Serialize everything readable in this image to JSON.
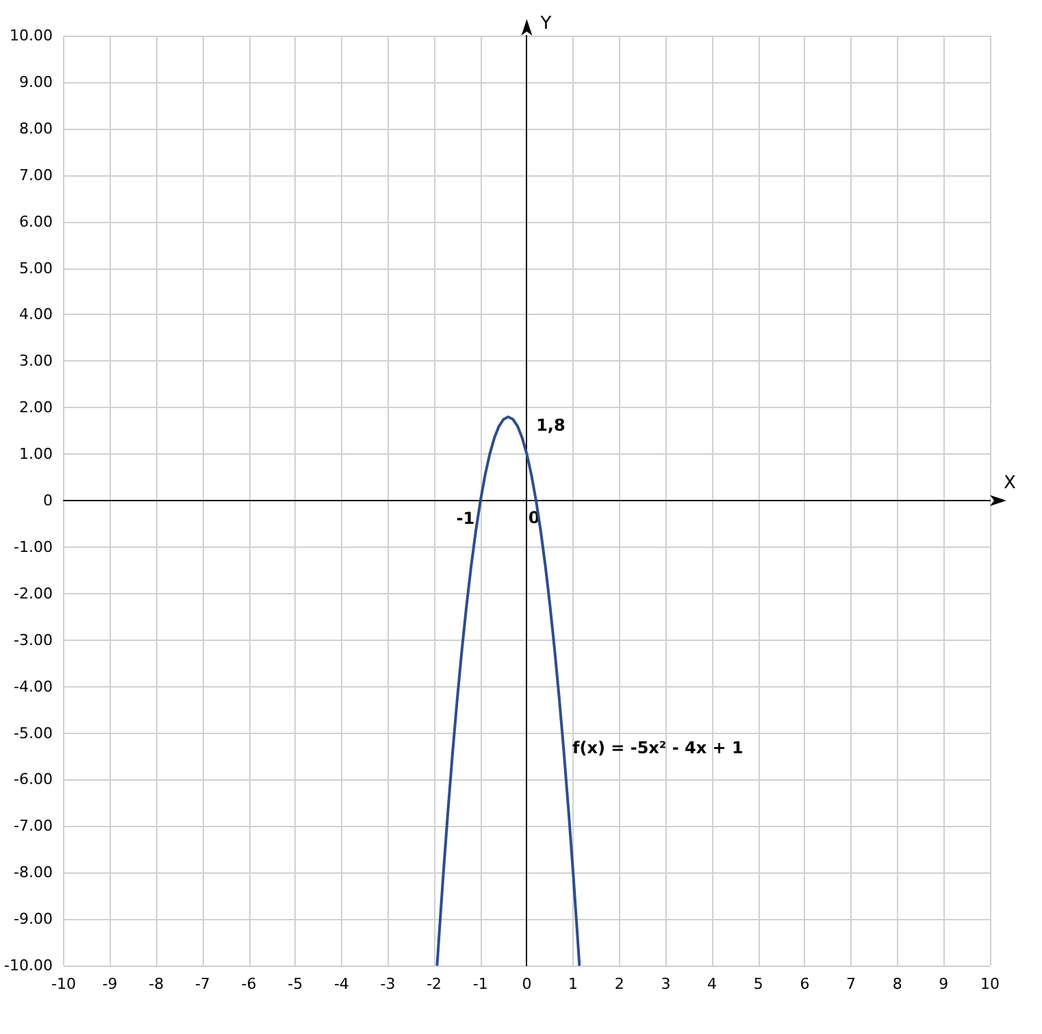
{
  "chart_data": {
    "type": "line",
    "xlabel": "X",
    "ylabel": "Y",
    "x": [
      -1.935,
      -1.9,
      -1.8,
      -1.7,
      -1.6,
      -1.5,
      -1.4,
      -1.3,
      -1.2,
      -1.1,
      -1.0,
      -0.9,
      -0.8,
      -0.7,
      -0.6,
      -0.5,
      -0.4,
      -0.3,
      -0.2,
      -0.1,
      0.0,
      0.1,
      0.2,
      0.3,
      0.4,
      0.5,
      0.6,
      0.7,
      0.8,
      0.9,
      1.0,
      1.1,
      1.135
    ],
    "series": [
      {
        "color": "#2e4d8a",
        "values": [
          -9.98,
          -9.45,
          -8.0,
          -6.65,
          -5.4,
          -4.25,
          -3.2,
          -2.25,
          -1.4,
          -0.65,
          0.0,
          0.55,
          1.0,
          1.35,
          1.6,
          1.75,
          1.8,
          1.75,
          1.6,
          1.35,
          1.0,
          0.55,
          0.0,
          -0.65,
          -1.4,
          -2.25,
          -3.2,
          -4.25,
          -5.4,
          -6.65,
          -8.0,
          -9.45,
          -9.98
        ]
      }
    ],
    "xlim": [
      -10,
      10
    ],
    "xticks": [
      -10,
      -9,
      -8,
      -7,
      -6,
      -5,
      -4,
      -3,
      -2,
      -1,
      0,
      1,
      2,
      3,
      4,
      5,
      6,
      7,
      8,
      9,
      10
    ],
    "ylim": [
      -10,
      10
    ],
    "yticks": [
      {
        "value": -10,
        "label": "-10.00"
      },
      {
        "value": -9,
        "label": "-9.00"
      },
      {
        "value": -8,
        "label": "-8.00"
      },
      {
        "value": -7,
        "label": "-7.00"
      },
      {
        "value": -6,
        "label": "-6.00"
      },
      {
        "value": -5,
        "label": "-5.00"
      },
      {
        "value": -4,
        "label": "-4.00"
      },
      {
        "value": -3,
        "label": "-3.00"
      },
      {
        "value": -2,
        "label": "-2.00"
      },
      {
        "value": -1,
        "label": "-1.00"
      },
      0,
      {
        "value": 1,
        "label": "1.00"
      },
      {
        "value": 2,
        "label": "2.00"
      },
      {
        "value": 3,
        "label": "3.00"
      },
      {
        "value": 4,
        "label": "4.00"
      },
      {
        "value": 5,
        "label": "5.00"
      },
      {
        "value": 6,
        "label": "6.00"
      },
      {
        "value": 7,
        "label": "7.00"
      },
      {
        "value": 8,
        "label": "8.00"
      },
      {
        "value": 9,
        "label": "9.00"
      },
      {
        "value": 10,
        "label": "10.00"
      }
    ],
    "annotations": [
      {
        "text": "1,8",
        "x": -0.4,
        "y": 1.8
      },
      {
        "text": "-1",
        "x": -1,
        "y": 0
      },
      "0",
      "f(x) = -5x² - 4x + 1"
    ],
    "grid": true,
    "marker": "none",
    "line_style": "solid"
  }
}
